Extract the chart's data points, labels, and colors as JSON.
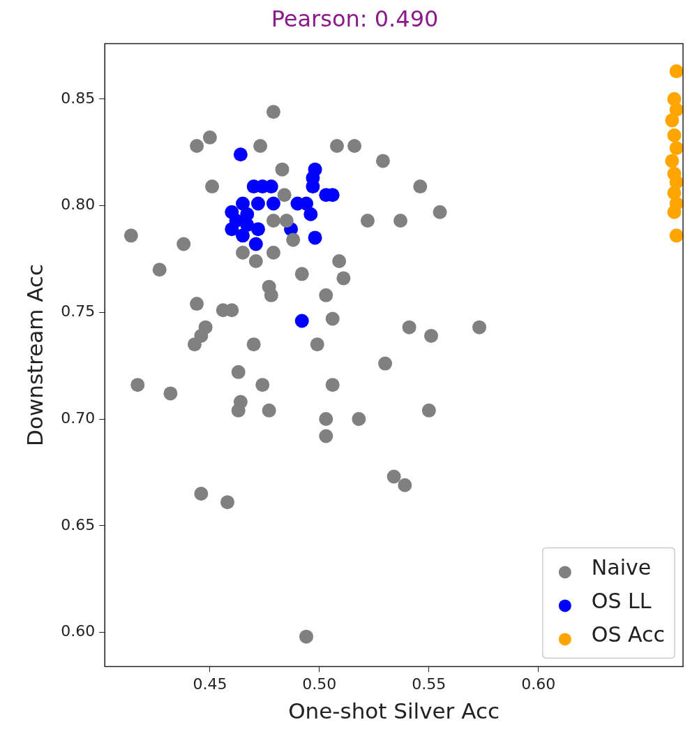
{
  "chart_data": {
    "type": "scatter",
    "title": "Pearson: 0.490",
    "xlabel": "One-shot Silver Acc",
    "ylabel": "Downstream Acc",
    "xlim": [
      0.402,
      0.666
    ],
    "xticks": [
      0.45,
      {
        "value": 0.5,
        "label": "0.50"
      },
      0.55,
      {
        "value": 0.6,
        "label": "0.60"
      }
    ],
    "ylim": [
      0.584,
      0.876
    ],
    "yticks": [
      {
        "value": 0.6,
        "label": "0.60"
      },
      0.65,
      {
        "value": 0.7,
        "label": "0.70"
      },
      0.75,
      {
        "value": 0.8,
        "label": "0.80"
      },
      0.85
    ],
    "grid": false,
    "legend": "bottom right",
    "marker": "circle",
    "series": [
      {
        "name": "Naive",
        "color": "#808080",
        "x": [
          0.479,
          0.444,
          0.45,
          0.473,
          0.451,
          0.483,
          0.508,
          0.516,
          0.529,
          0.546,
          0.484,
          0.555,
          0.522,
          0.537,
          0.414,
          0.438,
          0.427,
          0.465,
          0.471,
          0.479,
          0.488,
          0.509,
          0.511,
          0.492,
          0.477,
          0.478,
          0.444,
          0.456,
          0.46,
          0.506,
          0.503,
          0.448,
          0.446,
          0.443,
          0.47,
          0.499,
          0.541,
          0.551,
          0.573,
          0.53,
          0.463,
          0.417,
          0.432,
          0.474,
          0.506,
          0.464,
          0.463,
          0.477,
          0.503,
          0.518,
          0.55,
          0.503,
          0.534,
          0.539,
          0.446,
          0.458,
          0.494,
          0.479,
          0.485
        ],
        "values": [
          0.844,
          0.828,
          0.832,
          0.828,
          0.809,
          0.817,
          0.828,
          0.828,
          0.821,
          0.809,
          0.805,
          0.797,
          0.793,
          0.793,
          0.786,
          0.782,
          0.77,
          0.778,
          0.774,
          0.778,
          0.784,
          0.774,
          0.766,
          0.768,
          0.762,
          0.758,
          0.754,
          0.751,
          0.751,
          0.747,
          0.758,
          0.743,
          0.739,
          0.735,
          0.735,
          0.735,
          0.743,
          0.739,
          0.743,
          0.726,
          0.722,
          0.716,
          0.712,
          0.716,
          0.716,
          0.708,
          0.704,
          0.704,
          0.7,
          0.7,
          0.704,
          0.692,
          0.673,
          0.669,
          0.665,
          0.661,
          0.598,
          0.793,
          0.793
        ]
      },
      {
        "name": "OS LL",
        "color": "#0000ff",
        "x": [
          0.464,
          0.498,
          0.497,
          0.497,
          0.503,
          0.506,
          0.47,
          0.474,
          0.478,
          0.465,
          0.472,
          0.479,
          0.49,
          0.494,
          0.496,
          0.46,
          0.467,
          0.46,
          0.465,
          0.472,
          0.471,
          0.487,
          0.498,
          0.492,
          0.467,
          0.462
        ],
        "values": [
          0.824,
          0.817,
          0.813,
          0.809,
          0.805,
          0.805,
          0.809,
          0.809,
          0.809,
          0.801,
          0.801,
          0.801,
          0.801,
          0.801,
          0.796,
          0.797,
          0.796,
          0.789,
          0.786,
          0.789,
          0.782,
          0.789,
          0.785,
          0.746,
          0.791,
          0.793
        ]
      },
      {
        "name": "OS Acc",
        "color": "#ffa500",
        "x": [
          0.663,
          0.662,
          0.663,
          0.661,
          0.662,
          0.663,
          0.661,
          0.662,
          0.663,
          0.662,
          0.663,
          0.662,
          0.663
        ],
        "values": [
          0.863,
          0.85,
          0.845,
          0.84,
          0.833,
          0.827,
          0.821,
          0.815,
          0.811,
          0.806,
          0.801,
          0.797,
          0.786
        ]
      }
    ]
  }
}
